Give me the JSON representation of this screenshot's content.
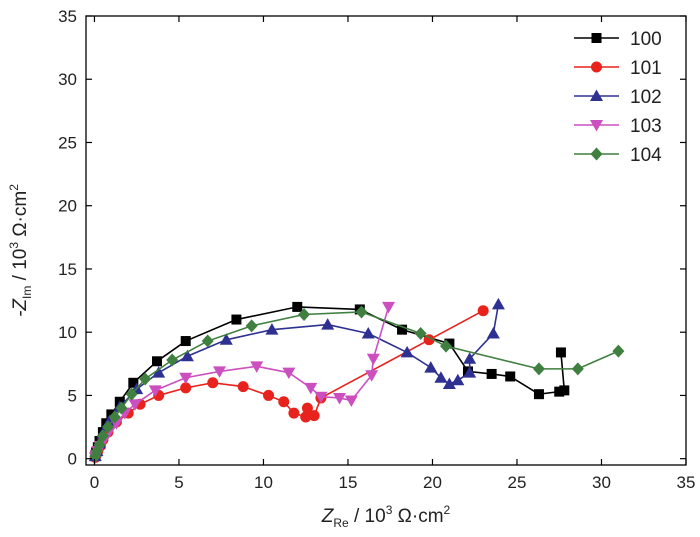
{
  "chart_data": {
    "type": "line",
    "title": "",
    "xlabel": {
      "main": "Z",
      "sub": "Re",
      "rest": " / 10",
      "sup": "3",
      "unit": " Ω·cm",
      "sup2": "2"
    },
    "ylabel": {
      "prefix": "-Z",
      "sub": "Im",
      "rest": " / 10",
      "sup": "3",
      "unit": " Ω·cm",
      "sup2": "2"
    },
    "xlim": [
      -0.5,
      35
    ],
    "ylim": [
      -0.5,
      35
    ],
    "x_ticks": [
      0,
      5,
      10,
      15,
      20,
      25,
      30,
      35
    ],
    "y_ticks": [
      0,
      5,
      10,
      15,
      20,
      25,
      30,
      35
    ],
    "x_tick_labels": [
      "0",
      "5",
      "10",
      "15",
      "20",
      "25",
      "30",
      "35"
    ],
    "y_tick_labels": [
      "0",
      "5",
      "10",
      "15",
      "20",
      "25",
      "30",
      "35"
    ],
    "legend_position": "top-right",
    "series": [
      {
        "name": "100",
        "color": "#000000",
        "marker": "square",
        "points": [
          [
            0.05,
            0.2
          ],
          [
            0.1,
            0.5
          ],
          [
            0.2,
            0.9
          ],
          [
            0.3,
            1.4
          ],
          [
            0.5,
            2.1
          ],
          [
            0.7,
            2.8
          ],
          [
            1.0,
            3.5
          ],
          [
            1.5,
            4.5
          ],
          [
            2.3,
            6.0
          ],
          [
            3.7,
            7.7
          ],
          [
            5.4,
            9.3
          ],
          [
            8.4,
            11.0
          ],
          [
            12.0,
            12.0
          ],
          [
            15.7,
            11.8
          ],
          [
            18.2,
            10.2
          ],
          [
            21.0,
            9.1
          ],
          [
            22.1,
            6.9
          ],
          [
            23.5,
            6.7
          ],
          [
            24.6,
            6.5
          ],
          [
            26.3,
            5.1
          ],
          [
            27.5,
            5.3
          ],
          [
            27.8,
            5.4
          ],
          [
            27.6,
            8.4
          ]
        ]
      },
      {
        "name": "101",
        "color": "#e8221c",
        "marker": "circle",
        "points": [
          [
            0.05,
            0.1
          ],
          [
            0.1,
            0.3
          ],
          [
            0.2,
            0.6
          ],
          [
            0.35,
            1.0
          ],
          [
            0.5,
            1.5
          ],
          [
            0.8,
            2.1
          ],
          [
            1.3,
            2.9
          ],
          [
            2.0,
            3.6
          ],
          [
            2.7,
            4.3
          ],
          [
            3.8,
            5.0
          ],
          [
            5.4,
            5.6
          ],
          [
            7.0,
            6.0
          ],
          [
            8.8,
            5.7
          ],
          [
            10.3,
            5.0
          ],
          [
            11.2,
            4.5
          ],
          [
            11.8,
            3.6
          ],
          [
            12.5,
            3.3
          ],
          [
            12.6,
            4.0
          ],
          [
            13.0,
            3.4
          ],
          [
            13.4,
            4.8
          ],
          [
            19.8,
            9.4
          ],
          [
            23.0,
            11.7
          ]
        ]
      },
      {
        "name": "102",
        "color": "#2e3192",
        "marker": "triangle-up",
        "points": [
          [
            0.05,
            0.2
          ],
          [
            0.15,
            0.6
          ],
          [
            0.3,
            1.2
          ],
          [
            0.5,
            2.0
          ],
          [
            0.9,
            3.0
          ],
          [
            1.5,
            4.1
          ],
          [
            2.5,
            5.5
          ],
          [
            3.8,
            6.8
          ],
          [
            5.5,
            8.1
          ],
          [
            7.8,
            9.4
          ],
          [
            10.5,
            10.2
          ],
          [
            13.8,
            10.6
          ],
          [
            16.2,
            9.9
          ],
          [
            18.5,
            8.4
          ],
          [
            19.9,
            7.2
          ],
          [
            20.5,
            6.4
          ],
          [
            21.0,
            5.9
          ],
          [
            21.5,
            6.2
          ],
          [
            22.2,
            6.8
          ],
          [
            22.2,
            7.9
          ],
          [
            23.6,
            9.9
          ],
          [
            23.9,
            12.2
          ]
        ]
      },
      {
        "name": "103",
        "color": "#cc4fc0",
        "marker": "triangle-down",
        "points": [
          [
            0.05,
            0.1
          ],
          [
            0.1,
            0.3
          ],
          [
            0.2,
            0.6
          ],
          [
            0.35,
            1.0
          ],
          [
            0.6,
            1.6
          ],
          [
            0.9,
            2.2
          ],
          [
            1.3,
            2.8
          ],
          [
            1.8,
            3.6
          ],
          [
            2.4,
            4.3
          ],
          [
            3.6,
            5.4
          ],
          [
            5.4,
            6.4
          ],
          [
            7.4,
            6.9
          ],
          [
            9.6,
            7.3
          ],
          [
            11.5,
            6.8
          ],
          [
            12.8,
            5.6
          ],
          [
            13.4,
            4.9
          ],
          [
            14.5,
            4.8
          ],
          [
            15.2,
            4.6
          ],
          [
            16.4,
            6.6
          ],
          [
            16.5,
            7.9
          ],
          [
            17.4,
            12.0
          ]
        ]
      },
      {
        "name": "104",
        "color": "#3f7f3f",
        "marker": "diamond",
        "points": [
          [
            0.05,
            0.2
          ],
          [
            0.15,
            0.6
          ],
          [
            0.3,
            1.1
          ],
          [
            0.5,
            1.8
          ],
          [
            0.8,
            2.5
          ],
          [
            1.2,
            3.3
          ],
          [
            1.6,
            4.0
          ],
          [
            2.2,
            5.1
          ],
          [
            3.0,
            6.3
          ],
          [
            4.6,
            7.8
          ],
          [
            6.7,
            9.3
          ],
          [
            9.3,
            10.5
          ],
          [
            12.4,
            11.4
          ],
          [
            15.8,
            11.6
          ],
          [
            19.3,
            9.9
          ],
          [
            20.8,
            8.9
          ],
          [
            26.3,
            7.1
          ],
          [
            28.6,
            7.1
          ],
          [
            31.0,
            8.5
          ]
        ]
      }
    ]
  }
}
